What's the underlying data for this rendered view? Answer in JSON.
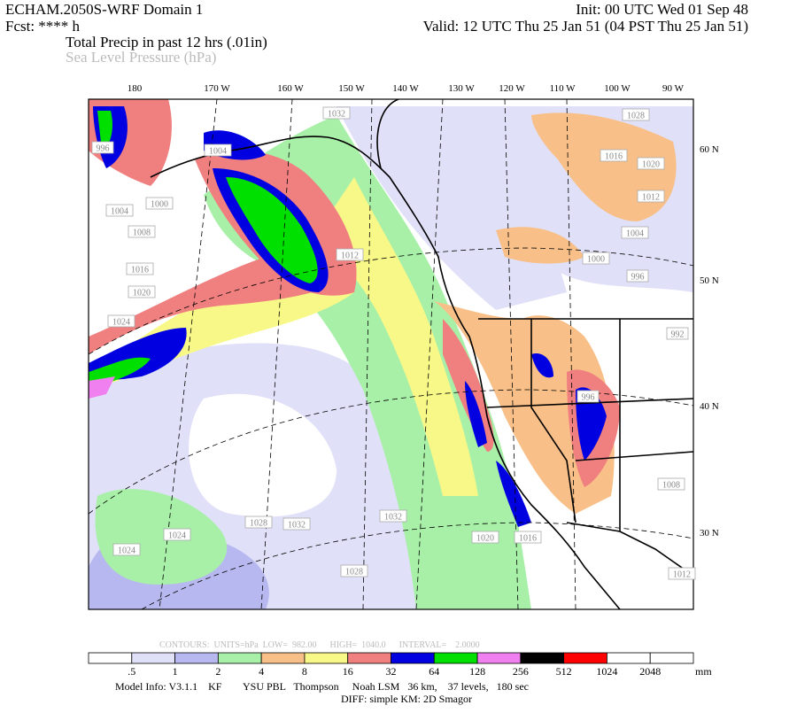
{
  "header": {
    "model": "ECHAM.2050S-WRF Domain 1",
    "init": "Init: 00 UTC Wed 01 Sep 48",
    "fcst": "Fcst: **** h",
    "valid": "Valid: 12 UTC Thu 25 Jan 51 (04 PST Thu 25 Jan 51)",
    "field1": "Total Precip in past 12 hrs (.01in)",
    "field2": "Sea Level Pressure (hPa)"
  },
  "map": {
    "lon_labels": [
      "180",
      "170 W",
      "160 W",
      "150 W",
      "140 W",
      "130 W",
      "120 W",
      "110 W",
      "100 W",
      "90 W"
    ],
    "lat_labels": [
      "60 N",
      "50 N",
      "40 N",
      "30 N"
    ],
    "contour_labels": [
      "1032",
      "1028",
      "1004",
      "996",
      "1000",
      "1004",
      "1008",
      "1016",
      "1020",
      "1024",
      "1012",
      "1016",
      "1020",
      "1012",
      "1004",
      "1000",
      "996",
      "992",
      "1008",
      "1012",
      "1020",
      "1016",
      "1028",
      "1032",
      "1032",
      "1028",
      "1024",
      "1024",
      "996"
    ]
  },
  "contours_info": "CONTOURS:  UNITS=hPa  LOW=  982.00      HIGH=  1040.0      INTERVAL=    2.0000",
  "colorbar": {
    "colors": [
      "#ffffff",
      "#e0e0f8",
      "#b8b8f0",
      "#a8f0a8",
      "#f8c088",
      "#f8f888",
      "#f08080",
      "#0000e0",
      "#00e000",
      "#f080f0",
      "#000000",
      "#ff0000",
      "#ffffff",
      "#ffffff"
    ],
    "labels": [
      ".5",
      "1",
      "2",
      "4",
      "8",
      "16",
      "32",
      "64",
      "128",
      "256",
      "512",
      "1024",
      "2048"
    ],
    "unit": "mm"
  },
  "footer": {
    "model_info": "Model Info: V3.1.1    KF        YSU PBL   Thompson     Noah LSM   36 km,    37 levels,   180 sec",
    "diff": "DIFF: simple KM: 2D Smagor"
  }
}
